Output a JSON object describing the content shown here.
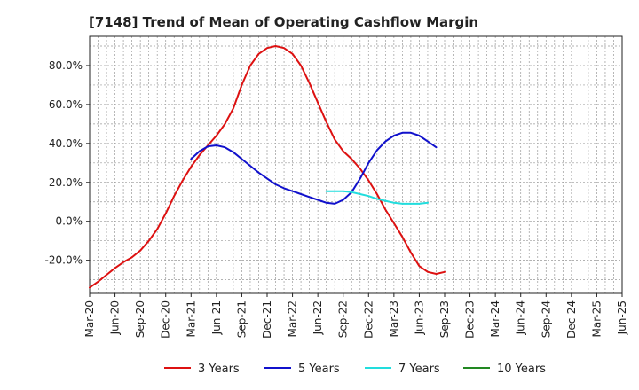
{
  "chart_data": {
    "type": "line",
    "title": "[7148]  Trend of Mean of Operating Cashflow Margin",
    "xlabel": "",
    "ylabel": "",
    "ylim": [
      -37,
      95
    ],
    "yticks": [
      80,
      60,
      40,
      20,
      0,
      -20
    ],
    "ytick_labels": [
      "80.0%",
      "60.0%",
      "40.0%",
      "20.0%",
      "0.0%",
      "-20.0%"
    ],
    "x_start": "Mar-20",
    "x_ticks": [
      "Mar-20",
      "Jun-20",
      "Sep-20",
      "Dec-20",
      "Mar-21",
      "Jun-21",
      "Sep-21",
      "Dec-21",
      "Mar-22",
      "Jun-22",
      "Sep-22",
      "Dec-22",
      "Mar-23",
      "Jun-23",
      "Sep-23",
      "Dec-23",
      "Mar-24",
      "Jun-24",
      "Sep-24",
      "Dec-24",
      "Mar-25",
      "Jun-25"
    ],
    "grid": true,
    "legend_position": "bottom",
    "series": [
      {
        "name": "3 Years",
        "color": "#dd1111",
        "start_index": 0,
        "values": [
          -34,
          -31,
          -27.5,
          -24,
          -21,
          -18.5,
          -15,
          -10,
          -4,
          4,
          13,
          21,
          28,
          34,
          39,
          44,
          50,
          58,
          70,
          80,
          86,
          89,
          90,
          89,
          86,
          80,
          71,
          61,
          51,
          42,
          36,
          32,
          27,
          21,
          14,
          6,
          -1,
          -8,
          -16,
          -23,
          -26,
          -27,
          -26
        ]
      },
      {
        "name": "5 Years",
        "color": "#1111cc",
        "start_index": 12,
        "values": [
          32,
          36,
          38.5,
          39,
          38,
          35.5,
          32,
          28.5,
          25,
          22,
          19,
          17,
          15.5,
          14,
          12.5,
          11,
          9.5,
          9,
          11,
          15,
          22,
          30,
          36.5,
          41,
          44,
          45.5,
          45.5,
          44,
          41,
          38
        ]
      },
      {
        "name": "7 Years",
        "color": "#22dddd",
        "start_index": 28,
        "values": [
          15.5,
          15.5,
          15.5,
          15,
          14,
          13,
          11.5,
          10.5,
          9.5,
          9,
          9,
          9,
          9.5
        ]
      },
      {
        "name": "10 Years",
        "color": "#228822",
        "start_index": 0,
        "values": []
      }
    ]
  }
}
